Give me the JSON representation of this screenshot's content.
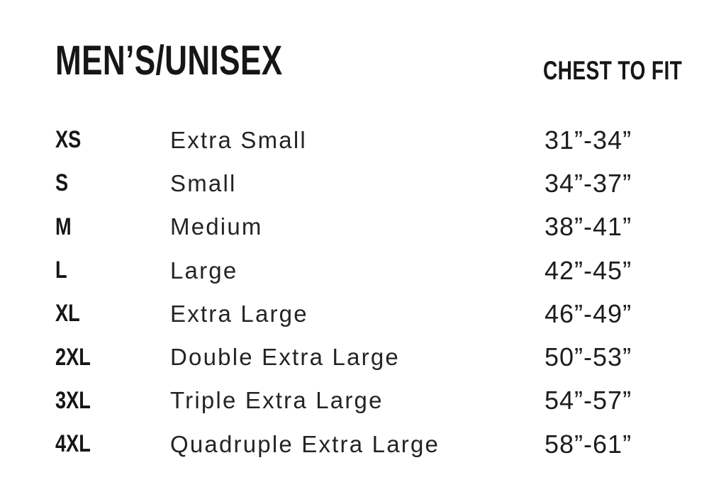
{
  "header": {
    "title": "MEN’S/UNISEX",
    "chest_to_fit_label": "CHEST TO FIT"
  },
  "chart_data": {
    "type": "table",
    "title": "MEN’S/UNISEX",
    "columns": [
      "size_code",
      "size_name",
      "chest_to_fit"
    ],
    "rows": [
      {
        "code": "XS",
        "name": "Extra Small",
        "chest": "31”-34”"
      },
      {
        "code": "S",
        "name": "Small",
        "chest": "34”-37”"
      },
      {
        "code": "M",
        "name": "Medium",
        "chest": "38”-41”"
      },
      {
        "code": "L",
        "name": "Large",
        "chest": "42”-45”"
      },
      {
        "code": "XL",
        "name": "Extra Large",
        "chest": "46”-49”"
      },
      {
        "code": "2XL",
        "name": "Double Extra Large",
        "chest": "50”-53”"
      },
      {
        "code": "3XL",
        "name": "Triple Extra Large",
        "chest": "54”-57”"
      },
      {
        "code": "4XL",
        "name": "Quadruple Extra Large",
        "chest": "58”-61”"
      }
    ]
  },
  "colors": {
    "text": "#1d1d1d",
    "background": "#ffffff"
  }
}
